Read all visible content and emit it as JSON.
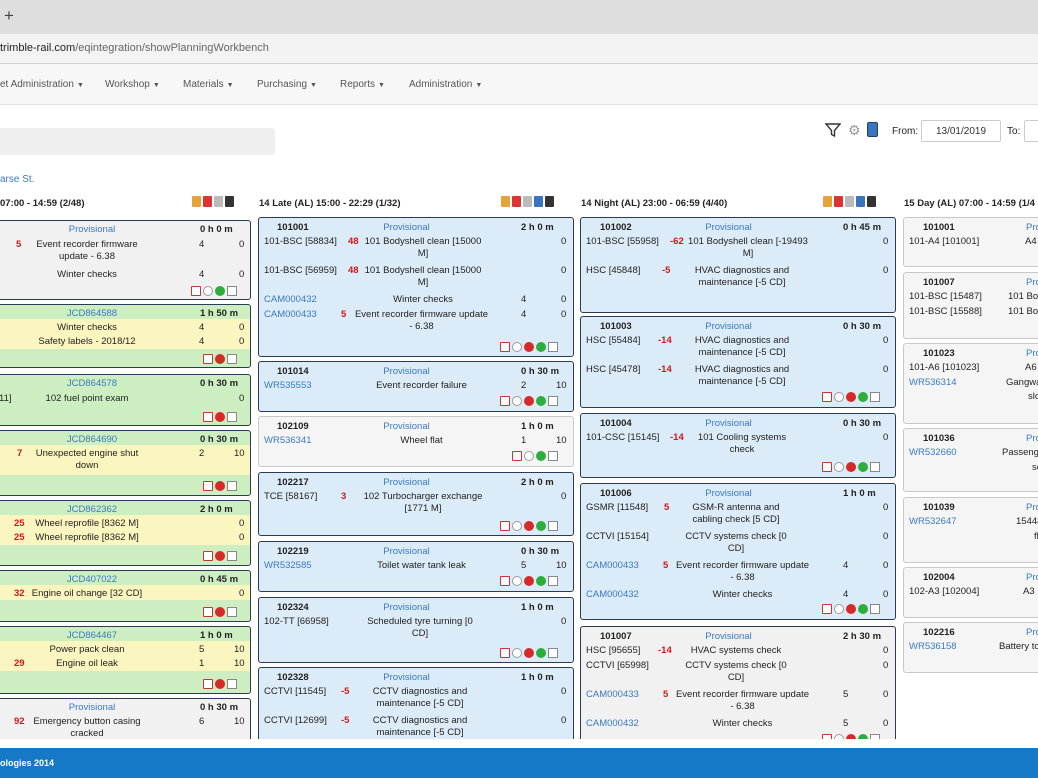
{
  "browser": {
    "new_tab": "+",
    "url_host": "trimble-rail.com",
    "url_path": "/eqintegration/showPlanningWorkbench"
  },
  "menu": {
    "items": [
      "et Administration",
      "Workshop",
      "Materials",
      "Purchasing",
      "Reports",
      "Administration"
    ]
  },
  "toolbar": {
    "from_label": "From:",
    "from_value": "13/01/2019",
    "to_label": "To:"
  },
  "parse_link": "arse St.",
  "shifts": [
    "07:00 - 14:59 (2/48)",
    "14 Late (AL) 15:00 - 22:29 (1/32)",
    "14 Night (AL) 23:00 - 06:59 (4/40)",
    "15 Day (AL) 07:00 - 14:59 (1/4"
  ],
  "col1": [
    {
      "title": "Provisional",
      "dur": "0 h 0 m",
      "rows": [
        {
          "n": "5",
          "desc": "Event recorder firmware update - 6.38",
          "a": "4",
          "b": "0"
        },
        {
          "desc": "Winter checks",
          "a": "4",
          "b": "0"
        }
      ]
    },
    {
      "title": "JCD864588",
      "dur": "1 h 50 m",
      "rows": [
        {
          "desc": "Winter checks",
          "a": "4",
          "b": "0"
        },
        {
          "desc": "Safety labels - 2018/12",
          "a": "4",
          "b": "0"
        }
      ]
    },
    {
      "title": "JCD864578",
      "dur": "0 h 30 m",
      "rows": [
        {
          "code": "11]",
          "desc": "102 fuel point exam",
          "b": "0"
        }
      ]
    },
    {
      "title": "JCD864690",
      "dur": "0 h 30 m",
      "rows": [
        {
          "n": "7",
          "desc": "Unexpected engine shut down",
          "a": "2",
          "b": "10"
        }
      ]
    },
    {
      "title": "JCD862362",
      "dur": "2 h 0 m",
      "rows": [
        {
          "n": "25",
          "desc": "Wheel reprofile [8362 M]",
          "b": "0"
        },
        {
          "n": "25",
          "desc": "Wheel reprofile [8362 M]",
          "b": "0"
        }
      ]
    },
    {
      "title": "JCD407022",
      "dur": "0 h 45 m",
      "rows": [
        {
          "n": "32",
          "desc": "Engine oil change [32 CD]",
          "b": "0"
        }
      ]
    },
    {
      "title": "JCD864467",
      "dur": "1 h 0 m",
      "rows": [
        {
          "desc": "Power pack clean",
          "a": "5",
          "b": "10"
        },
        {
          "n": "29",
          "desc": "Engine oil leak",
          "a": "1",
          "b": "10"
        }
      ]
    },
    {
      "title": "Provisional",
      "dur": "0 h 30 m",
      "rows": [
        {
          "n": "92",
          "desc": "Emergency button casing cracked",
          "a": "6",
          "b": "10"
        }
      ]
    }
  ],
  "col2": [
    {
      "unit": "101001",
      "title": "Provisional",
      "dur": "2 h 0 m",
      "rows": [
        {
          "code": "101-BSC [58834]",
          "n": "48",
          "desc": "101 Bodyshell clean [15000 M]",
          "b": "0"
        },
        {
          "code": "101-BSC [56959]",
          "n": "48",
          "desc": "101 Bodyshell clean [15000 M]",
          "b": "0"
        },
        {
          "code": "CAM000432",
          "desc": "Winter checks",
          "a": "4",
          "b": "0"
        },
        {
          "code": "CAM000433",
          "n": "5",
          "desc": "Event recorder firmware update - 6.38",
          "a": "4",
          "b": "0"
        }
      ]
    },
    {
      "unit": "101014",
      "title": "Provisional",
      "dur": "0 h 30 m",
      "rows": [
        {
          "code": "WR535553",
          "desc": "Event recorder failure",
          "a": "2",
          "b": "10"
        }
      ]
    },
    {
      "unit": "102109",
      "title": "Provisional",
      "dur": "1 h 0 m",
      "rows": [
        {
          "code": "WR536341",
          "desc": "Wheel flat",
          "a": "1",
          "b": "10"
        }
      ]
    },
    {
      "unit": "102217",
      "title": "Provisional",
      "dur": "2 h 0 m",
      "rows": [
        {
          "code": "TCE [58167]",
          "n": "3",
          "desc": "102 Turbocharger exchange [1771 M]",
          "b": "0"
        }
      ]
    },
    {
      "unit": "102219",
      "title": "Provisional",
      "dur": "0 h 30 m",
      "rows": [
        {
          "code": "WR532585",
          "desc": "Toilet water tank leak",
          "a": "5",
          "b": "10"
        }
      ]
    },
    {
      "unit": "102324",
      "title": "Provisional",
      "dur": "1 h 0 m",
      "rows": [
        {
          "code": "102-TT [66958]",
          "desc": "Scheduled tyre turning [0 CD]",
          "b": "0"
        }
      ]
    },
    {
      "unit": "102328",
      "title": "Provisional",
      "dur": "1 h 0 m",
      "rows": [
        {
          "code": "CCTVI [11545]",
          "n": "-5",
          "desc": "CCTV diagnostics and maintenance [-5 CD]",
          "b": "0"
        },
        {
          "code": "CCTVI [12699]",
          "n": "-5",
          "desc": "CCTV diagnostics and maintenance [-5 CD]",
          "b": "0"
        }
      ]
    }
  ],
  "col3": [
    {
      "unit": "101002",
      "title": "Provisional",
      "dur": "0 h 45 m",
      "rows": [
        {
          "code": "101-BSC [55958]",
          "n": "-62",
          "desc": "101 Bodyshell clean [-19493 M]",
          "b": "0"
        },
        {
          "code": "HSC [45848]",
          "n": "-5",
          "desc": "HVAC diagnostics and maintenance [-5 CD]",
          "b": "0"
        }
      ]
    },
    {
      "unit": "101003",
      "title": "Provisional",
      "dur": "0 h 30 m",
      "rows": [
        {
          "code": "HSC [55484]",
          "n": "-14",
          "desc": "HVAC diagnostics and maintenance [-5 CD]",
          "b": "0"
        },
        {
          "code": "HSC [45478]",
          "n": "-14",
          "desc": "HVAC diagnostics and maintenance [-5 CD]",
          "b": "0"
        }
      ]
    },
    {
      "unit": "101004",
      "title": "Provisional",
      "dur": "0 h 30 m",
      "rows": [
        {
          "code": "101-CSC [15145]",
          "n": "-14",
          "desc": "101 Cooling systems check",
          "b": "0"
        }
      ]
    },
    {
      "unit": "101006",
      "title": "Provisional",
      "dur": "1 h 0 m",
      "rows": [
        {
          "code": "GSMR [11548]",
          "n": "5",
          "desc": "GSM-R antenna and cabling check [5 CD]",
          "b": "0"
        },
        {
          "code": "CCTVI [15154]",
          "desc": "CCTV systems check [0 CD]",
          "b": "0"
        },
        {
          "code": "CAM000433",
          "n": "5",
          "desc": "Event recorder firmware update - 6.38",
          "a": "4",
          "b": "0"
        },
        {
          "code": "CAM000432",
          "desc": "Winter checks",
          "a": "4",
          "b": "0"
        }
      ]
    },
    {
      "unit": "101007",
      "title": "Provisional",
      "dur": "2 h 30 m",
      "rows": [
        {
          "code": "HSC [95655]",
          "n": "-14",
          "desc": "HVAC systems check",
          "b": "0"
        },
        {
          "code": "CCTVI [65998]",
          "desc": "CCTV systems check [0 CD]",
          "b": "0"
        },
        {
          "code": "CAM000433",
          "n": "5",
          "desc": "Event recorder firmware update - 6.38",
          "a": "5",
          "b": "0"
        },
        {
          "code": "CAM000432",
          "desc": "Winter checks",
          "a": "5",
          "b": "0"
        }
      ]
    }
  ],
  "col4": [
    {
      "unit": "101001",
      "title": "Pro",
      "rows": [
        {
          "code": "101-A4 [101001]",
          "desc": "A4"
        }
      ]
    },
    {
      "unit": "101007",
      "title": "Pro",
      "rows": [
        {
          "code": "101-BSC [15487]",
          "desc": "101 Bo"
        },
        {
          "code": "101-BSC [15588]",
          "desc": "101 Bo"
        }
      ]
    },
    {
      "unit": "101023",
      "title": "Pro",
      "rows": [
        {
          "code": "101-A6 [101023]",
          "desc": "A6"
        },
        {
          "code": "WR536314",
          "desc": "Gangwa"
        },
        {
          "desc": "slo"
        }
      ]
    },
    {
      "unit": "101036",
      "title": "Pro",
      "rows": [
        {
          "code": "WR532660",
          "desc": "Passeng"
        },
        {
          "desc": "se"
        }
      ]
    },
    {
      "unit": "101039",
      "title": "Pro",
      "rows": [
        {
          "code": "WR532647",
          "desc": "15448"
        },
        {
          "desc": "fl"
        }
      ]
    },
    {
      "unit": "102004",
      "title": "Pro",
      "rows": [
        {
          "code": "102-A3 [102004]",
          "desc": "A3 B"
        }
      ]
    },
    {
      "unit": "102216",
      "title": "Pro",
      "rows": [
        {
          "code": "WR536158",
          "desc": "Battery to"
        }
      ]
    }
  ],
  "footer": "ologies 2014",
  "colors": {
    "accent": "#1679c8",
    "link": "#3a7ac0",
    "red": "#d01818",
    "card_blue": "#dcebf8",
    "card_green": "#cdeec0",
    "highlight": "#fbf6bf"
  }
}
